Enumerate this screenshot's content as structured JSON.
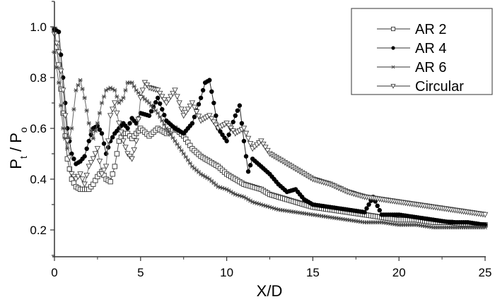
{
  "chart_data": {
    "type": "line",
    "title": "",
    "xlabel": "X/D",
    "ylabel_main": "P",
    "ylabel_sub1": "t",
    "ylabel_sep": " / ",
    "ylabel_main2": "P",
    "ylabel_sub2": "o",
    "ylabel": "Pt / Po",
    "xlim": [
      0,
      25
    ],
    "ylim": [
      0.1,
      1.1
    ],
    "xticks": [
      0,
      5,
      10,
      15,
      20,
      25
    ],
    "xtick_labels": [
      "0",
      "5",
      "10",
      "15",
      "20",
      "25"
    ],
    "yticks": [
      0.2,
      0.4,
      0.6,
      0.8,
      1.0
    ],
    "ytick_labels": [
      "0.2",
      "0.4",
      "0.6",
      "0.8",
      "1.0"
    ],
    "grid": false,
    "legend_position": "upper right",
    "series": [
      {
        "name": "AR 2",
        "marker": "square-open",
        "x": [
          0,
          0.25,
          0.5,
          0.75,
          1,
          1.25,
          1.5,
          1.75,
          2,
          2.25,
          2.5,
          2.75,
          3,
          3.25,
          3.5,
          3.75,
          4,
          4.25,
          4.5,
          4.75,
          5,
          5.5,
          6,
          6.5,
          7,
          7.5,
          8,
          8.5,
          9,
          9.5,
          10,
          10.5,
          11,
          11.5,
          12,
          12.5,
          13,
          13.5,
          14,
          14.5,
          15,
          16,
          17,
          18,
          19,
          20,
          21,
          22,
          23,
          24,
          25
        ],
        "values": [
          0.99,
          0.85,
          0.66,
          0.48,
          0.4,
          0.37,
          0.36,
          0.36,
          0.36,
          0.38,
          0.41,
          0.43,
          0.4,
          0.39,
          0.45,
          0.55,
          0.58,
          0.58,
          0.56,
          0.58,
          0.6,
          0.57,
          0.6,
          0.58,
          0.6,
          0.57,
          0.52,
          0.49,
          0.47,
          0.45,
          0.42,
          0.4,
          0.38,
          0.37,
          0.36,
          0.34,
          0.33,
          0.32,
          0.31,
          0.3,
          0.29,
          0.28,
          0.27,
          0.26,
          0.25,
          0.24,
          0.24,
          0.23,
          0.23,
          0.22,
          0.22
        ]
      },
      {
        "name": "AR 4",
        "marker": "circle-filled",
        "x": [
          0,
          0.25,
          0.5,
          0.75,
          1,
          1.25,
          1.5,
          1.75,
          2,
          2.25,
          2.5,
          2.75,
          3,
          3.25,
          3.5,
          3.75,
          4,
          4.25,
          4.5,
          4.75,
          5,
          5.5,
          6,
          6.5,
          7,
          7.5,
          8,
          8.5,
          8.75,
          9,
          9.25,
          9.5,
          10,
          10.5,
          10.75,
          11,
          11.25,
          11.5,
          12,
          12.5,
          13,
          13.5,
          14,
          14.5,
          15,
          16,
          17,
          18,
          18.5,
          19,
          20,
          21,
          22,
          23,
          24,
          25
        ],
        "values": [
          0.99,
          0.98,
          0.8,
          0.6,
          0.5,
          0.46,
          0.47,
          0.49,
          0.55,
          0.6,
          0.61,
          0.58,
          0.5,
          0.55,
          0.58,
          0.6,
          0.62,
          0.6,
          0.64,
          0.62,
          0.66,
          0.65,
          0.72,
          0.63,
          0.6,
          0.58,
          0.62,
          0.72,
          0.78,
          0.79,
          0.7,
          0.6,
          0.55,
          0.65,
          0.69,
          0.55,
          0.43,
          0.48,
          0.45,
          0.42,
          0.38,
          0.35,
          0.36,
          0.32,
          0.3,
          0.29,
          0.28,
          0.27,
          0.33,
          0.26,
          0.26,
          0.25,
          0.24,
          0.23,
          0.23,
          0.22
        ]
      },
      {
        "name": "AR 6",
        "marker": "asterisk",
        "x": [
          0,
          0.25,
          0.5,
          0.75,
          1,
          1.25,
          1.5,
          1.75,
          2,
          2.25,
          2.5,
          2.75,
          3,
          3.25,
          3.5,
          3.75,
          4,
          4.25,
          4.5,
          4.75,
          5,
          5.5,
          6,
          6.5,
          7,
          7.5,
          8,
          8.5,
          9,
          9.5,
          10,
          10.5,
          11,
          11.5,
          12,
          12.5,
          13,
          14,
          15,
          16,
          17,
          18,
          19,
          20,
          21,
          22,
          23,
          24,
          25
        ],
        "values": [
          0.9,
          0.78,
          0.6,
          0.52,
          0.6,
          0.75,
          0.79,
          0.72,
          0.62,
          0.56,
          0.62,
          0.7,
          0.75,
          0.76,
          0.75,
          0.7,
          0.72,
          0.78,
          0.78,
          0.75,
          0.73,
          0.7,
          0.66,
          0.6,
          0.55,
          0.5,
          0.45,
          0.42,
          0.4,
          0.37,
          0.36,
          0.34,
          0.33,
          0.31,
          0.3,
          0.29,
          0.28,
          0.27,
          0.26,
          0.25,
          0.24,
          0.23,
          0.23,
          0.22,
          0.22,
          0.21,
          0.21,
          0.21,
          0.21
        ]
      },
      {
        "name": "Circular",
        "marker": "triangle-down-open",
        "x": [
          0,
          0.25,
          0.5,
          0.75,
          1,
          1.25,
          1.5,
          1.75,
          2,
          2.25,
          2.5,
          2.75,
          3,
          3.25,
          3.5,
          3.75,
          4,
          4.25,
          4.5,
          4.75,
          5,
          5.25,
          5.5,
          6,
          6.5,
          7,
          7.5,
          8,
          8.5,
          9,
          9.5,
          10,
          10.5,
          11,
          11.5,
          12,
          12.5,
          13,
          13.5,
          14,
          14.5,
          15,
          16,
          17,
          18,
          19,
          20,
          21,
          22,
          23,
          24,
          25
        ],
        "values": [
          0.97,
          0.9,
          0.75,
          0.55,
          0.42,
          0.4,
          0.42,
          0.38,
          0.45,
          0.48,
          0.52,
          0.42,
          0.45,
          0.65,
          0.7,
          0.62,
          0.55,
          0.5,
          0.48,
          0.55,
          0.72,
          0.78,
          0.76,
          0.75,
          0.7,
          0.75,
          0.65,
          0.7,
          0.63,
          0.65,
          0.6,
          0.62,
          0.58,
          0.6,
          0.52,
          0.55,
          0.5,
          0.48,
          0.46,
          0.44,
          0.42,
          0.4,
          0.38,
          0.35,
          0.33,
          0.32,
          0.31,
          0.3,
          0.29,
          0.28,
          0.27,
          0.26
        ]
      }
    ]
  },
  "legend": {
    "items": [
      {
        "label": "AR 2"
      },
      {
        "label": "AR 4"
      },
      {
        "label": "AR 6"
      },
      {
        "label": "Circular"
      }
    ]
  }
}
